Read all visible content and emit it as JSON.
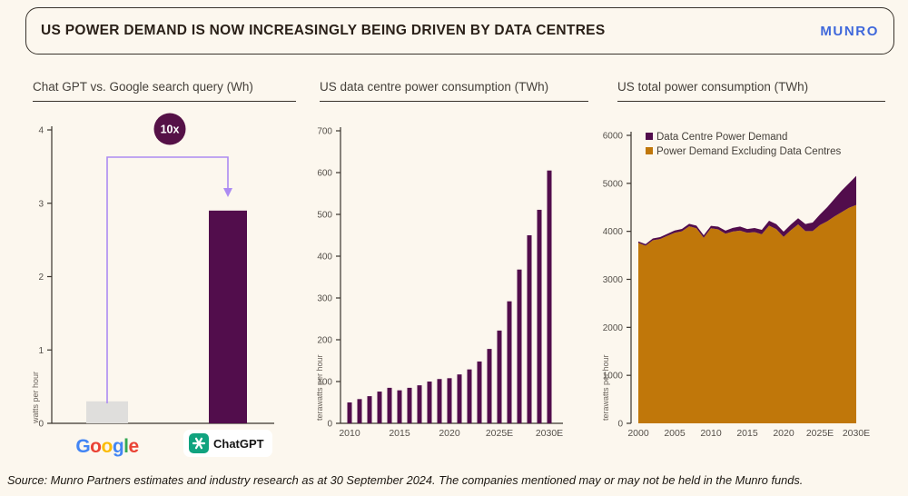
{
  "header": {
    "title": "US POWER DEMAND IS NOW INCREASINGLY BEING DRIVEN BY DATA CENTRES",
    "brand": "MUNRO"
  },
  "footer": {
    "source": "Source: Munro Partners estimates and industry research as at 30 September 2024. The companies mentioned may or may not be held in the Munro funds."
  },
  "colors": {
    "background": "#FCF7EE",
    "purple": "#520D4C",
    "orange": "#C0770A",
    "arrow_purple": "#AC8BF2",
    "badge_purple": "#551147",
    "google_bar_gray": "#DFDEDC",
    "brand_blue": "#3F68DB",
    "axis": "#3A342D"
  },
  "chart_data": [
    {
      "type": "bar",
      "title": "Chat GPT vs. Google search query (Wh)",
      "ylabel": "watts per hour",
      "ylim": [
        0,
        4
      ],
      "yticks": [
        0,
        1,
        2,
        3,
        4
      ],
      "categories": [
        "Google",
        "ChatGPT"
      ],
      "values": [
        0.3,
        2.9
      ],
      "bar_colors": [
        "#DFDEDC",
        "#520D4C"
      ],
      "annotation": "10x",
      "x_logos": {
        "google": {
          "letters": [
            {
              "ch": "G",
              "color": "#4285F4"
            },
            {
              "ch": "o",
              "color": "#EA4335"
            },
            {
              "ch": "o",
              "color": "#FBBC05"
            },
            {
              "ch": "g",
              "color": "#4285F4"
            },
            {
              "ch": "l",
              "color": "#34A853"
            },
            {
              "ch": "e",
              "color": "#EA4335"
            }
          ]
        },
        "chatgpt": {
          "label": "ChatGPT",
          "icon_color": "#10A37F"
        }
      }
    },
    {
      "type": "bar",
      "title": "US data centre power consumption (TWh)",
      "ylabel": "terawatts per hour",
      "ylim": [
        0,
        700
      ],
      "yticks": [
        0,
        100,
        200,
        300,
        400,
        500,
        600,
        700
      ],
      "years": [
        2010,
        2011,
        2012,
        2013,
        2014,
        2015,
        2016,
        2017,
        2018,
        2019,
        2020,
        2021,
        2022,
        2023,
        2024,
        2025,
        2026,
        2027,
        2028,
        2029,
        2030
      ],
      "values": [
        50,
        58,
        65,
        76,
        85,
        79,
        85,
        91,
        100,
        106,
        108,
        117,
        129,
        148,
        178,
        222,
        292,
        368,
        450,
        511,
        605
      ],
      "xtick_positions": [
        0,
        5,
        10,
        15,
        20
      ],
      "xtick_labels": [
        "2010",
        "2015",
        "2020",
        "2025E",
        "2030E"
      ],
      "bar_color": "#520D4C"
    },
    {
      "type": "area",
      "title": "US total power consumption (TWh)",
      "ylabel": "terawatts per hour",
      "ylim": [
        0,
        6000
      ],
      "yticks": [
        0,
        1000,
        2000,
        3000,
        4000,
        5000,
        6000
      ],
      "years": [
        2000,
        2001,
        2002,
        2003,
        2004,
        2005,
        2006,
        2007,
        2008,
        2009,
        2010,
        2011,
        2012,
        2013,
        2014,
        2015,
        2016,
        2017,
        2018,
        2019,
        2020,
        2021,
        2022,
        2023,
        2024,
        2025,
        2026,
        2027,
        2028,
        2029,
        2030
      ],
      "series": [
        {
          "name": "Power Demand Excluding Data Centres",
          "color": "#C0770A",
          "values": [
            3760,
            3700,
            3815,
            3840,
            3905,
            3970,
            4000,
            4105,
            4065,
            3865,
            4065,
            4040,
            3950,
            3995,
            4015,
            3970,
            3985,
            3940,
            4120,
            4045,
            3885,
            4025,
            4145,
            4005,
            4005,
            4130,
            4210,
            4310,
            4400,
            4490,
            4550
          ]
        },
        {
          "name": "Data Centre Power Demand",
          "color": "#520D4C",
          "values": [
            30,
            33,
            36,
            40,
            44,
            48,
            50,
            52,
            53,
            54,
            50,
            58,
            65,
            76,
            85,
            79,
            85,
            91,
            100,
            106,
            108,
            117,
            129,
            148,
            178,
            222,
            292,
            368,
            450,
            511,
            605
          ]
        }
      ],
      "legend": [
        {
          "label": "Data Centre Power Demand",
          "color": "#520D4C"
        },
        {
          "label": "Power Demand Excluding Data Centres",
          "color": "#C0770A"
        }
      ],
      "legend_position": "top-left",
      "xtick_positions": [
        0,
        5,
        10,
        15,
        20,
        25,
        30
      ],
      "xtick_labels": [
        "2000",
        "2005",
        "2010",
        "2015",
        "2020",
        "2025E",
        "2030E"
      ]
    }
  ]
}
